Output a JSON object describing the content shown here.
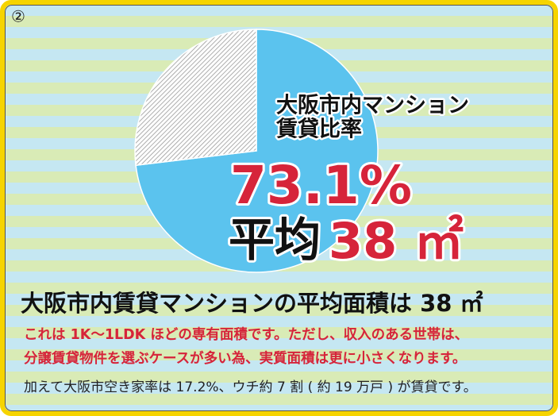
{
  "marker": "②",
  "chart_data": {
    "type": "pie",
    "categories": [
      null,
      null
    ],
    "values": [
      73.1,
      26.9
    ],
    "value_labels": [
      "73.1%",
      null
    ],
    "colors": [
      "#5bc3ee",
      "hatch"
    ],
    "pie_label": [
      "大阪市内マンション",
      "賃貸比率"
    ],
    "average_label": "平均",
    "average_value": "38 ㎡"
  },
  "heading": "大阪市内賃貸マンションの平均面積は 38 ㎡",
  "notes": [
    "これは 1K～1LDK ほどの専有面積です。ただし、収入のある世帯は、",
    "分譲賃貸物件を選ぶケースが多い為、実質面積は更に小さくなります。"
  ],
  "footnote": "加えて大阪市空き家率は 17.2%、ウチ約 7 割 ( 約 19 万戸 ) が賃貸です。"
}
